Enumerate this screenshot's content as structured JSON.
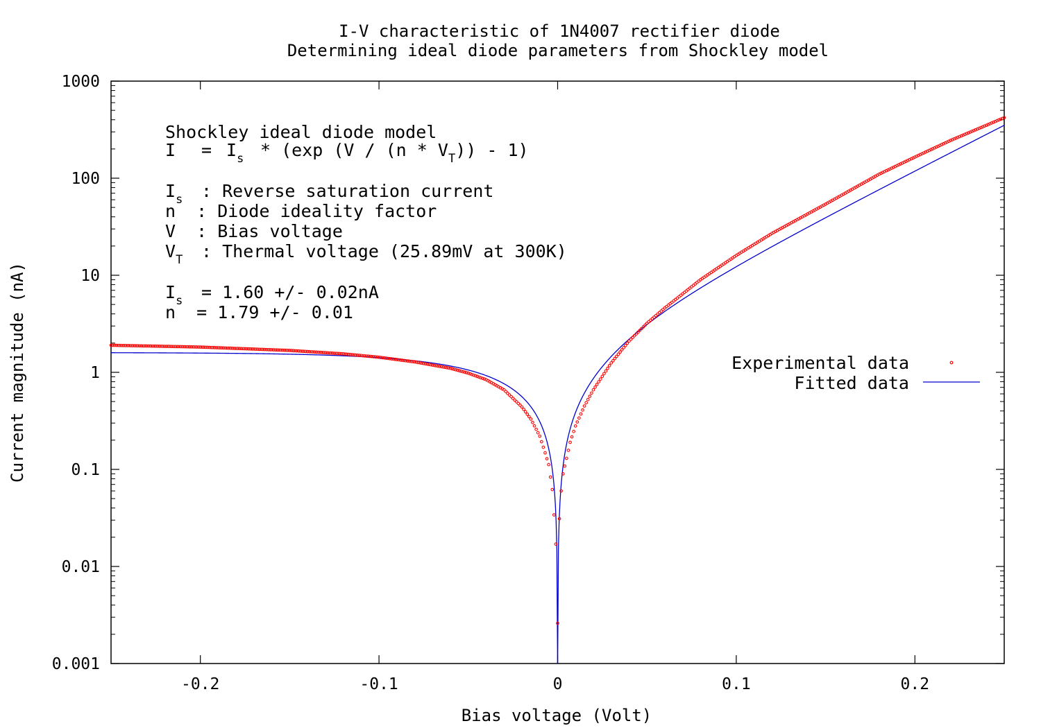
{
  "chart_data": {
    "type": "scatter",
    "title": "I-V characteristic of 1N4007 rectifier diode",
    "subtitle": "Determining ideal diode parameters from Shockley model",
    "xlabel": "Bias voltage (Volt)",
    "ylabel": "Current magnitude (nA)",
    "xlim": [
      -0.25,
      0.25
    ],
    "ylim": [
      0.001,
      1000
    ],
    "y_scale": "log",
    "x_ticks": [
      -0.2,
      -0.1,
      0,
      0.1,
      0.2
    ],
    "x_tick_labels": [
      "-0.2",
      "-0.1",
      "0",
      "0.1",
      "0.2"
    ],
    "y_ticks": [
      0.001,
      0.01,
      0.1,
      1,
      10,
      100,
      1000
    ],
    "y_tick_labels": [
      "0.001",
      "0.01",
      "0.1",
      "1",
      "10",
      "100",
      "1000"
    ],
    "grid": false,
    "legend_position": "right",
    "annotations": {
      "model_title": "Shockley ideal diode model",
      "eq_lhs": "I",
      "eq_eq": "=",
      "eq_I": "I",
      "eq_s": "s",
      "eq_mid": "* (exp (V / (n * V",
      "eq_T": "T",
      "eq_end": ")) - 1)",
      "is_sym": "I",
      "is_sub": "s",
      "is_desc": ": Reverse saturation current",
      "n_line": "n  : Diode ideality factor",
      "v_line": "V  : Bias voltage",
      "vt_sym": "V",
      "vt_sub": "T",
      "vt_desc": ": Thermal voltage (25.89mV at 300K)",
      "is_val_sym": "I",
      "is_val_sub": "s",
      "is_val": "= 1.60 +/- 0.02nA",
      "n_val": "n  = 1.79 +/- 0.01"
    },
    "series": [
      {
        "name": "Experimental data",
        "style": "points",
        "color": "#ff0000",
        "x": [
          -0.25,
          -0.2,
          -0.15,
          -0.12,
          -0.1,
          -0.08,
          -0.06,
          -0.05,
          -0.04,
          -0.03,
          -0.02,
          -0.015,
          -0.01,
          -0.007,
          -0.005,
          -0.003,
          -0.002,
          -0.001,
          0,
          0.001,
          0.002,
          0.003,
          0.005,
          0.007,
          0.01,
          0.015,
          0.02,
          0.03,
          0.04,
          0.05,
          0.06,
          0.08,
          0.1,
          0.12,
          0.15,
          0.18,
          0.2,
          0.22,
          0.25
        ],
        "y": [
          1.9,
          1.82,
          1.68,
          1.55,
          1.43,
          1.28,
          1.1,
          0.98,
          0.84,
          0.66,
          0.44,
          0.33,
          0.22,
          0.148,
          0.112,
          0.062,
          0.034,
          0.017,
          0.0026,
          0.031,
          0.06,
          0.09,
          0.13,
          0.19,
          0.28,
          0.45,
          0.66,
          1.25,
          2.1,
          3.2,
          4.6,
          9.0,
          16.0,
          27.0,
          54.0,
          110.0,
          165.0,
          245.0,
          420.0
        ]
      },
      {
        "name": "Fitted data",
        "style": "line",
        "color": "#0000cc",
        "model": {
          "Is": 1.6,
          "n": 1.79,
          "VT": 0.02589
        }
      }
    ]
  }
}
